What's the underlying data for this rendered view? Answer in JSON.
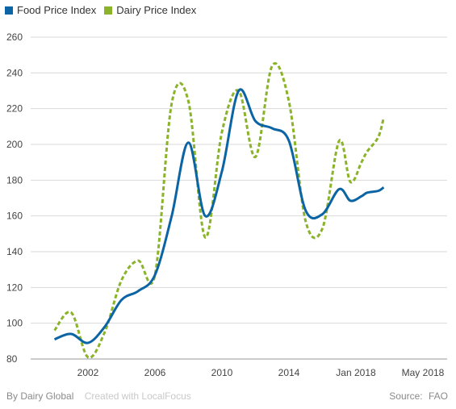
{
  "chart_data": {
    "type": "line",
    "ylim": [
      80,
      260
    ],
    "yticks": [
      80,
      100,
      120,
      140,
      160,
      180,
      200,
      220,
      240,
      260
    ],
    "xlim": [
      2000,
      2018.7
    ],
    "xticks": [
      {
        "x": 2002,
        "label": "2002"
      },
      {
        "x": 2006,
        "label": "2006"
      },
      {
        "x": 2010,
        "label": "2010"
      },
      {
        "x": 2014,
        "label": "2014"
      },
      {
        "x": 2018,
        "label": "Jan 2018"
      },
      {
        "x": 2018.33,
        "label": "May 2018"
      }
    ],
    "grid": true,
    "legend_position": "top-left",
    "series": [
      {
        "name": "Food Price Index",
        "color": "#0b64a4",
        "style": "solid",
        "points": [
          [
            2000,
            91
          ],
          [
            2001,
            94
          ],
          [
            2002,
            89
          ],
          [
            2003,
            98
          ],
          [
            2004,
            113
          ],
          [
            2005,
            118
          ],
          [
            2006,
            127
          ],
          [
            2007,
            160
          ],
          [
            2008,
            201
          ],
          [
            2009,
            160
          ],
          [
            2010,
            185
          ],
          [
            2011,
            230
          ],
          [
            2012,
            213
          ],
          [
            2013,
            209
          ],
          [
            2014,
            202
          ],
          [
            2015,
            163
          ],
          [
            2016,
            161
          ],
          [
            2017,
            175
          ],
          [
            2017.67,
            168.5
          ],
          [
            2018.33,
            171
          ],
          [
            2018.67,
            173
          ],
          [
            2019.33,
            174
          ],
          [
            2019.66,
            176
          ]
        ]
      },
      {
        "name": "Dairy Price Index",
        "color": "#8ab32a",
        "style": "dashed",
        "points": [
          [
            2000,
            96
          ],
          [
            2001,
            106
          ],
          [
            2002,
            81
          ],
          [
            2003,
            95
          ],
          [
            2004,
            124
          ],
          [
            2005,
            135
          ],
          [
            2006,
            127
          ],
          [
            2007,
            223
          ],
          [
            2008,
            224
          ],
          [
            2009,
            148
          ],
          [
            2010,
            207
          ],
          [
            2011,
            230
          ],
          [
            2012,
            193
          ],
          [
            2013,
            244
          ],
          [
            2014,
            224
          ],
          [
            2015,
            157
          ],
          [
            2016,
            153
          ],
          [
            2017,
            202
          ],
          [
            2017.67,
            179
          ],
          [
            2018.33,
            190
          ],
          [
            2018.67,
            196
          ],
          [
            2019.33,
            204
          ],
          [
            2019.66,
            215
          ]
        ]
      }
    ]
  },
  "legend": {
    "items": [
      {
        "label": "Food Price Index",
        "color": "#0b64a4"
      },
      {
        "label": "Dairy Price Index",
        "color": "#8ab32a"
      }
    ]
  },
  "footer": {
    "credit": "By Dairy Global",
    "created_with": "Created with LocalFocus",
    "source_label": "Source:",
    "source": "FAO"
  }
}
